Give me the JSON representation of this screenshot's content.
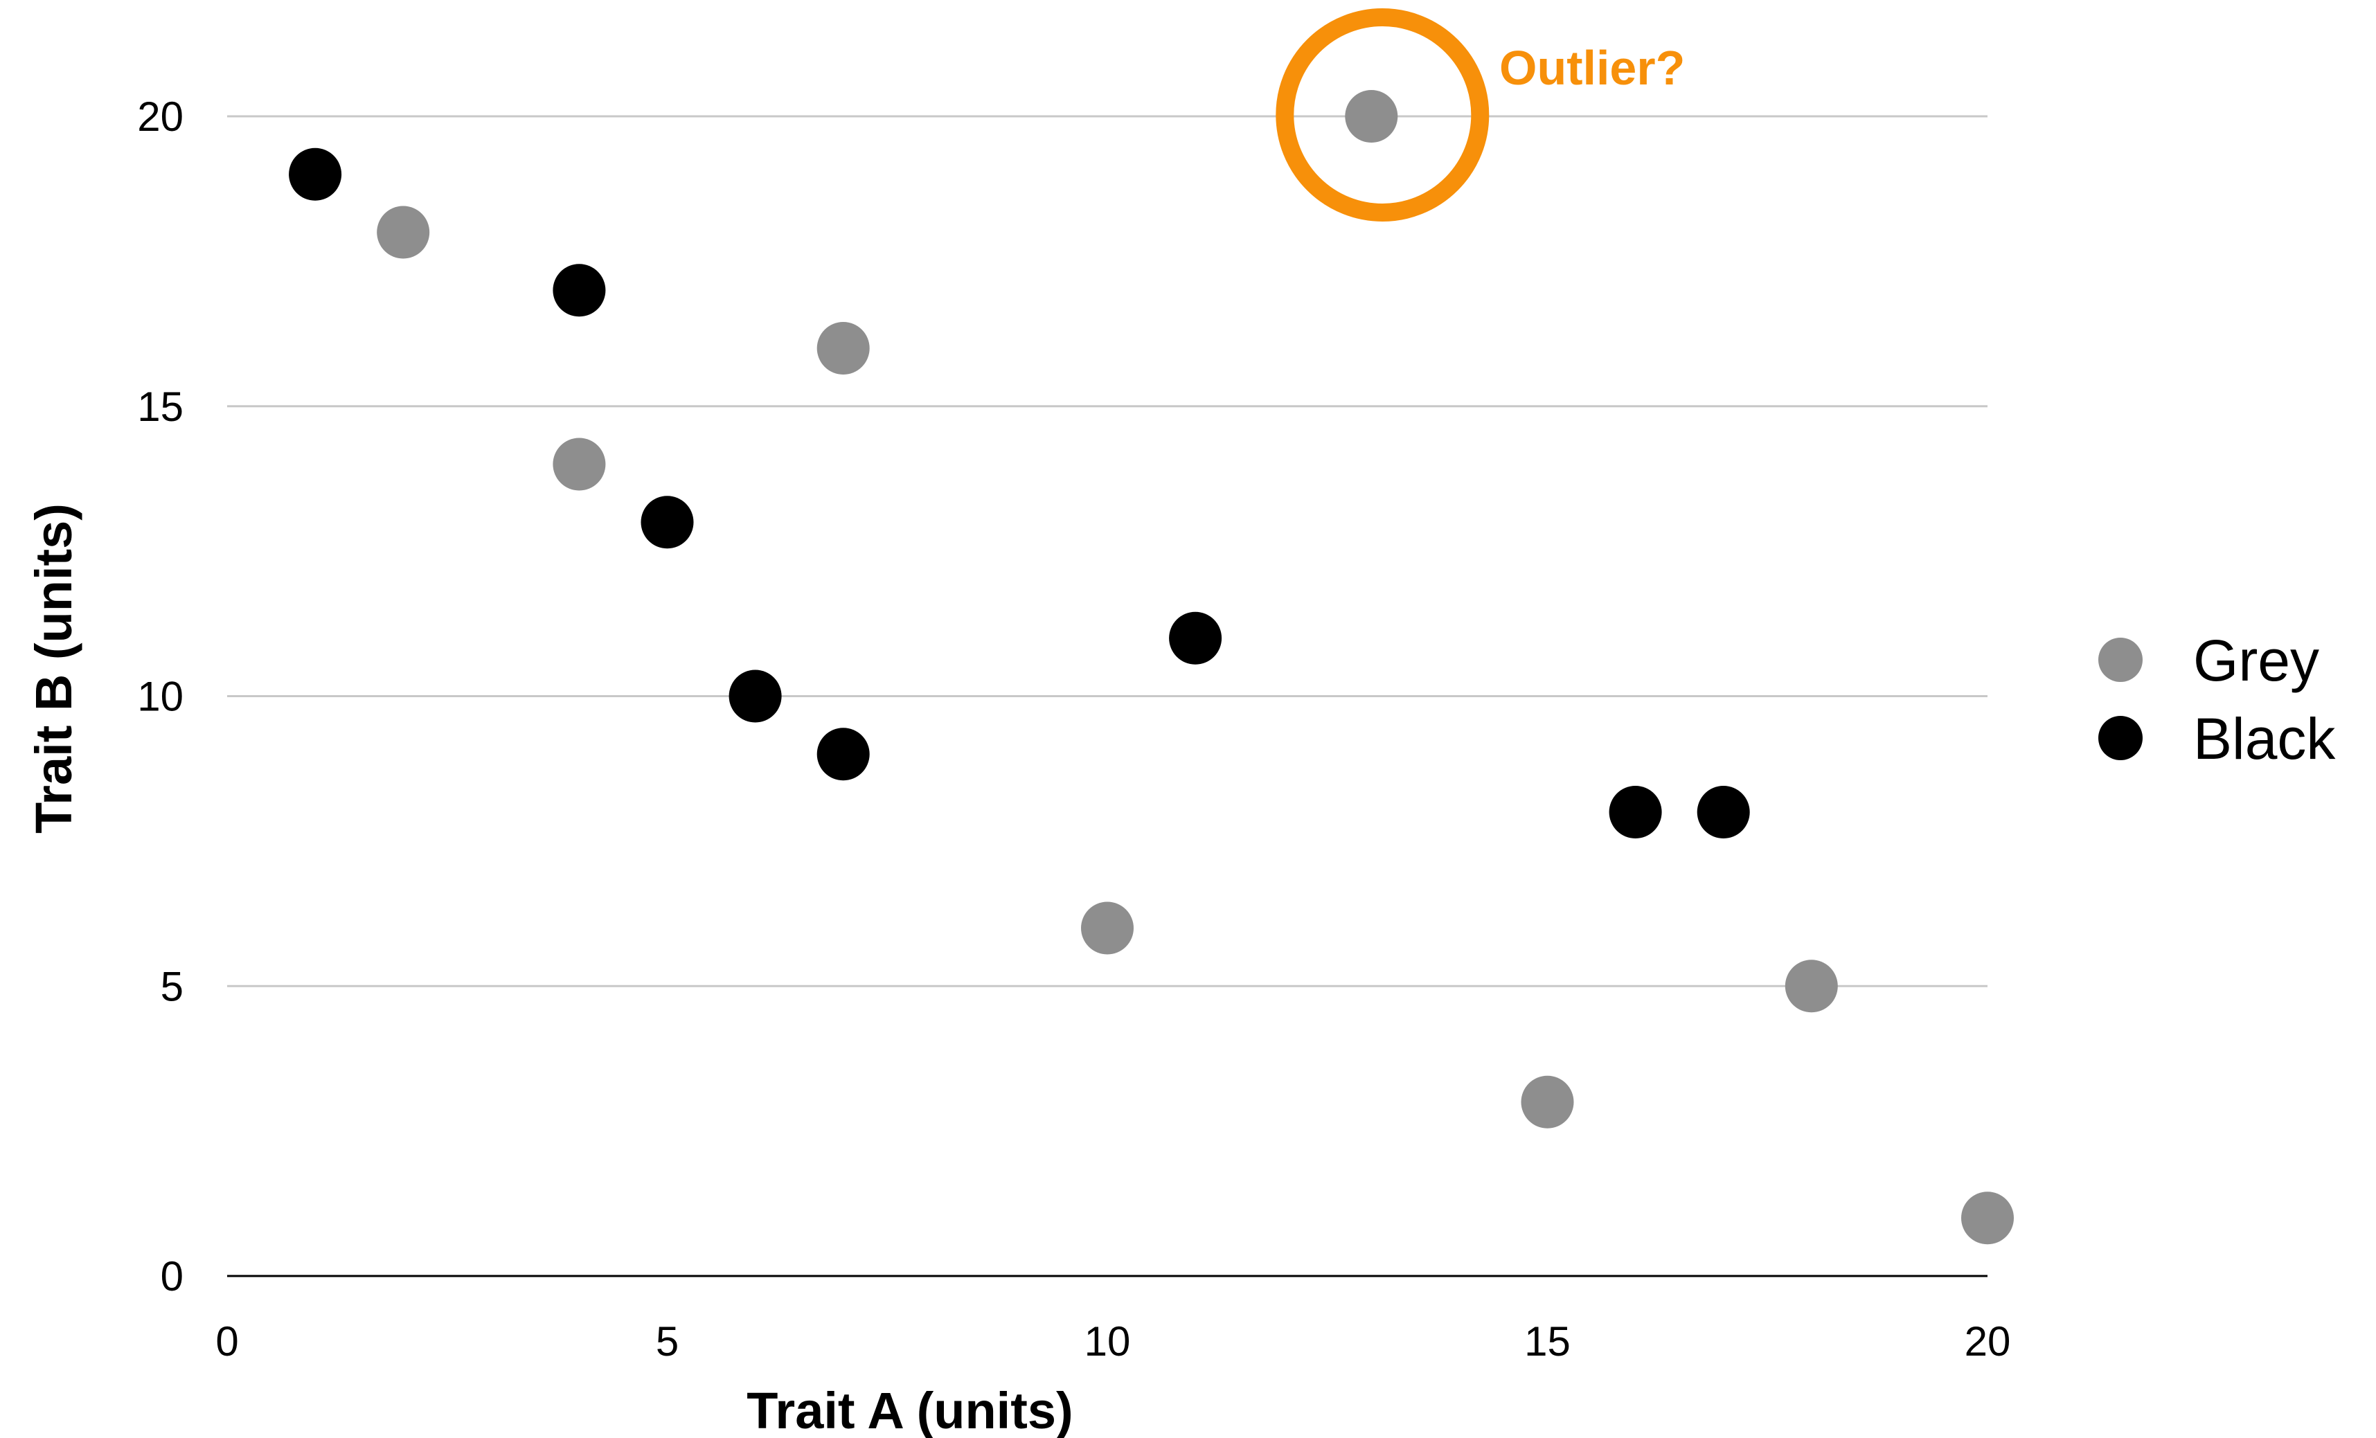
{
  "chart_data": {
    "type": "scatter",
    "title": "",
    "xlabel": "Trait A (units)",
    "ylabel": "Trait B (units)",
    "xlim": [
      0,
      20
    ],
    "ylim": [
      0,
      20
    ],
    "x_ticks": [
      "0",
      "5",
      "10",
      "15",
      "20"
    ],
    "y_ticks": [
      "0",
      "5",
      "10",
      "15",
      "20"
    ],
    "grid": "horizontal",
    "legend_position": "right",
    "series": [
      {
        "name": "Grey",
        "color": "#8e8e8e",
        "points": [
          {
            "x": 2,
            "y": 18
          },
          {
            "x": 4,
            "y": 14
          },
          {
            "x": 7,
            "y": 16
          },
          {
            "x": 10,
            "y": 6
          },
          {
            "x": 13,
            "y": 20
          },
          {
            "x": 15,
            "y": 3
          },
          {
            "x": 18,
            "y": 5
          },
          {
            "x": 20,
            "y": 1
          }
        ]
      },
      {
        "name": "Black",
        "color": "#000000",
        "points": [
          {
            "x": 1,
            "y": 19
          },
          {
            "x": 4,
            "y": 17
          },
          {
            "x": 5,
            "y": 13
          },
          {
            "x": 6,
            "y": 10
          },
          {
            "x": 7,
            "y": 9
          },
          {
            "x": 11,
            "y": 11
          },
          {
            "x": 16,
            "y": 8
          },
          {
            "x": 17,
            "y": 8
          }
        ]
      }
    ],
    "annotation": {
      "label": "Outlier?",
      "color": "#f7900a",
      "target": {
        "x": 13,
        "y": 20
      }
    }
  }
}
